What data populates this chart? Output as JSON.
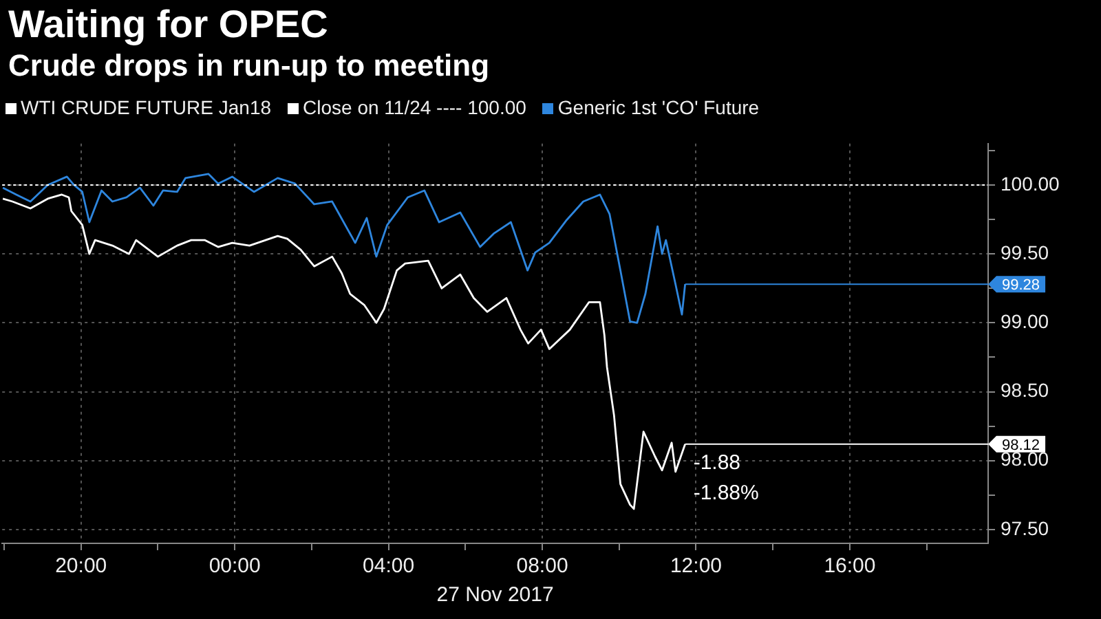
{
  "chart_data": {
    "type": "line",
    "title": "Waiting for OPEC",
    "subtitle": "Crude drops in run-up to meeting",
    "xlabel": "27 Nov 2017",
    "xlim": [
      "2017-11-26T17:57",
      "2017-11-27T19:36"
    ],
    "xticks": [
      {
        "value": "2017-11-26T18:00",
        "label": null
      },
      {
        "value": "2017-11-26T20:00",
        "label": "20:00"
      },
      {
        "value": "2017-11-26T22:00",
        "label": null
      },
      {
        "value": "2017-11-27T00:00",
        "label": "00:00"
      },
      {
        "value": "2017-11-27T02:00",
        "label": null
      },
      {
        "value": "2017-11-27T04:00",
        "label": "04:00"
      },
      {
        "value": "2017-11-27T06:00",
        "label": null
      },
      {
        "value": "2017-11-27T08:00",
        "label": "08:00"
      },
      {
        "value": "2017-11-27T10:00",
        "label": null
      },
      {
        "value": "2017-11-27T12:00",
        "label": "12:00"
      },
      {
        "value": "2017-11-27T14:00",
        "label": null
      },
      {
        "value": "2017-11-27T16:00",
        "label": "16:00"
      },
      {
        "value": "2017-11-27T18:00",
        "label": null
      }
    ],
    "ylim": [
      97.4,
      100.3
    ],
    "yticks": [
      {
        "value": 97.5,
        "label": "97.50"
      },
      {
        "value": 97.75,
        "label": null
      },
      {
        "value": 98,
        "label": "98.00"
      },
      {
        "value": 98.25,
        "label": null
      },
      {
        "value": 98.5,
        "label": "98.50"
      },
      {
        "value": 98.75,
        "label": null
      },
      {
        "value": 99,
        "label": "99.00"
      },
      {
        "value": 99.25,
        "label": null
      },
      {
        "value": 99.5,
        "label": "99.50"
      },
      {
        "value": 99.75,
        "label": null
      },
      {
        "value": 100,
        "label": "100.00"
      },
      {
        "value": 100.25,
        "label": null
      }
    ],
    "grid": true,
    "legend": "top left",
    "marker": "none",
    "line_style": "solid",
    "ref_lines": [
      {
        "axis": "y",
        "value": 100,
        "label": "Close on 11/24 ---- 100.00",
        "color": "#ffffff",
        "line_style": "dotted"
      }
    ],
    "annotations": [
      "-1.88",
      "-1.88%"
    ],
    "series": [
      {
        "name": "WTI CRUDE FUTURE Jan18",
        "color": "#ffffff",
        "x": [
          "2017-11-26T17:58",
          "2017-11-26T18:13",
          "2017-11-26T18:41",
          "2017-11-26T19:08",
          "2017-11-26T19:30",
          "2017-11-26T19:41",
          "2017-11-26T19:45",
          "2017-11-26T20:02",
          "2017-11-26T20:13",
          "2017-11-26T20:22",
          "2017-11-26T20:49",
          "2017-11-26T21:15",
          "2017-11-26T21:26",
          "2017-11-26T22:00",
          "2017-11-26T22:30",
          "2017-11-26T22:52",
          "2017-11-26T23:13",
          "2017-11-26T23:34",
          "2017-11-26T23:56",
          "2017-11-27T00:23",
          "2017-11-27T01:07",
          "2017-11-27T01:22",
          "2017-11-27T01:43",
          "2017-11-27T02:04",
          "2017-11-27T02:32",
          "2017-11-27T02:47",
          "2017-11-27T03:00",
          "2017-11-27T03:22",
          "2017-11-27T03:41",
          "2017-11-27T03:53",
          "2017-11-27T04:13",
          "2017-11-27T04:26",
          "2017-11-27T05:02",
          "2017-11-27T05:23",
          "2017-11-27T05:52",
          "2017-11-27T06:13",
          "2017-11-27T06:34",
          "2017-11-27T07:04",
          "2017-11-27T07:26",
          "2017-11-27T07:38",
          "2017-11-27T07:58",
          "2017-11-27T08:11",
          "2017-11-27T08:43",
          "2017-11-27T09:13",
          "2017-11-27T09:30",
          "2017-11-27T09:37",
          "2017-11-27T09:41",
          "2017-11-27T09:52",
          "2017-11-27T10:02",
          "2017-11-27T10:17",
          "2017-11-27T10:23",
          "2017-11-27T10:38",
          "2017-11-27T10:56",
          "2017-11-27T11:07",
          "2017-11-27T11:22",
          "2017-11-27T11:28",
          "2017-11-27T11:43"
        ],
        "values": [
          99.9,
          99.88,
          99.83,
          99.9,
          99.93,
          99.91,
          99.81,
          99.71,
          99.5,
          99.6,
          99.56,
          99.5,
          99.6,
          99.48,
          99.56,
          99.6,
          99.6,
          99.55,
          99.58,
          99.56,
          99.63,
          99.61,
          99.53,
          99.41,
          99.48,
          99.36,
          99.21,
          99.13,
          99,
          99.1,
          99.38,
          99.43,
          99.45,
          99.25,
          99.35,
          99.18,
          99.08,
          99.18,
          98.95,
          98.85,
          98.95,
          98.81,
          98.95,
          99.15,
          99.15,
          98.91,
          98.68,
          98.33,
          97.83,
          97.68,
          97.65,
          98.21,
          98.03,
          97.93,
          98.13,
          97.92,
          98.12
        ],
        "value_labels": [
          null,
          null,
          null,
          null,
          null,
          null,
          null,
          null,
          null,
          null,
          null,
          null,
          null,
          null,
          null,
          null,
          null,
          null,
          null,
          null,
          null,
          null,
          null,
          null,
          null,
          null,
          null,
          null,
          null,
          null,
          null,
          null,
          null,
          null,
          null,
          null,
          null,
          null,
          null,
          null,
          null,
          null,
          null,
          null,
          null,
          null,
          null,
          null,
          null,
          null,
          null,
          null,
          null,
          null,
          null,
          null,
          "98.12"
        ]
      },
      {
        "name": "Generic 1st 'CO' Future",
        "color": "#2e86de",
        "x": [
          "2017-11-26T17:58",
          "2017-11-26T18:19",
          "2017-11-26T18:41",
          "2017-11-26T19:08",
          "2017-11-26T19:38",
          "2017-11-26T19:49",
          "2017-11-26T20:02",
          "2017-11-26T20:13",
          "2017-11-26T20:32",
          "2017-11-26T20:49",
          "2017-11-26T21:11",
          "2017-11-26T21:32",
          "2017-11-26T21:53",
          "2017-11-26T22:08",
          "2017-11-26T22:30",
          "2017-11-26T22:43",
          "2017-11-26T23:19",
          "2017-11-26T23:34",
          "2017-11-26T23:56",
          "2017-11-27T00:30",
          "2017-11-27T01:07",
          "2017-11-27T01:34",
          "2017-11-27T02:04",
          "2017-11-27T02:32",
          "2017-11-27T03:08",
          "2017-11-27T03:26",
          "2017-11-27T03:41",
          "2017-11-27T03:58",
          "2017-11-27T04:30",
          "2017-11-27T04:56",
          "2017-11-27T05:19",
          "2017-11-27T05:52",
          "2017-11-27T06:23",
          "2017-11-27T06:45",
          "2017-11-27T07:11",
          "2017-11-27T07:37",
          "2017-11-27T07:49",
          "2017-11-27T08:11",
          "2017-11-27T08:37",
          "2017-11-27T09:04",
          "2017-11-27T09:30",
          "2017-11-27T09:45",
          "2017-11-27T10:02",
          "2017-11-27T10:17",
          "2017-11-27T10:28",
          "2017-11-27T10:41",
          "2017-11-27T11:00",
          "2017-11-27T11:07",
          "2017-11-27T11:13",
          "2017-11-27T11:28",
          "2017-11-27T11:38",
          "2017-11-27T11:43"
        ],
        "values": [
          99.98,
          99.93,
          99.88,
          100,
          100.06,
          100,
          99.95,
          99.73,
          99.96,
          99.88,
          99.91,
          99.98,
          99.85,
          99.96,
          99.95,
          100.05,
          100.08,
          100.01,
          100.06,
          99.95,
          100.05,
          100.01,
          99.86,
          99.88,
          99.58,
          99.76,
          99.48,
          99.71,
          99.91,
          99.96,
          99.73,
          99.8,
          99.55,
          99.65,
          99.73,
          99.38,
          99.51,
          99.58,
          99.74,
          99.88,
          99.93,
          99.79,
          99.38,
          99.01,
          99,
          99.21,
          99.7,
          99.5,
          99.6,
          99.28,
          99.06,
          99.28
        ],
        "value_labels": [
          null,
          null,
          null,
          null,
          null,
          null,
          null,
          null,
          null,
          null,
          null,
          null,
          null,
          null,
          null,
          null,
          null,
          null,
          null,
          null,
          null,
          null,
          null,
          null,
          null,
          null,
          null,
          null,
          null,
          null,
          null,
          null,
          null,
          null,
          null,
          null,
          null,
          null,
          null,
          null,
          null,
          null,
          null,
          null,
          null,
          null,
          null,
          null,
          null,
          null,
          null,
          "99.28"
        ]
      }
    ]
  }
}
